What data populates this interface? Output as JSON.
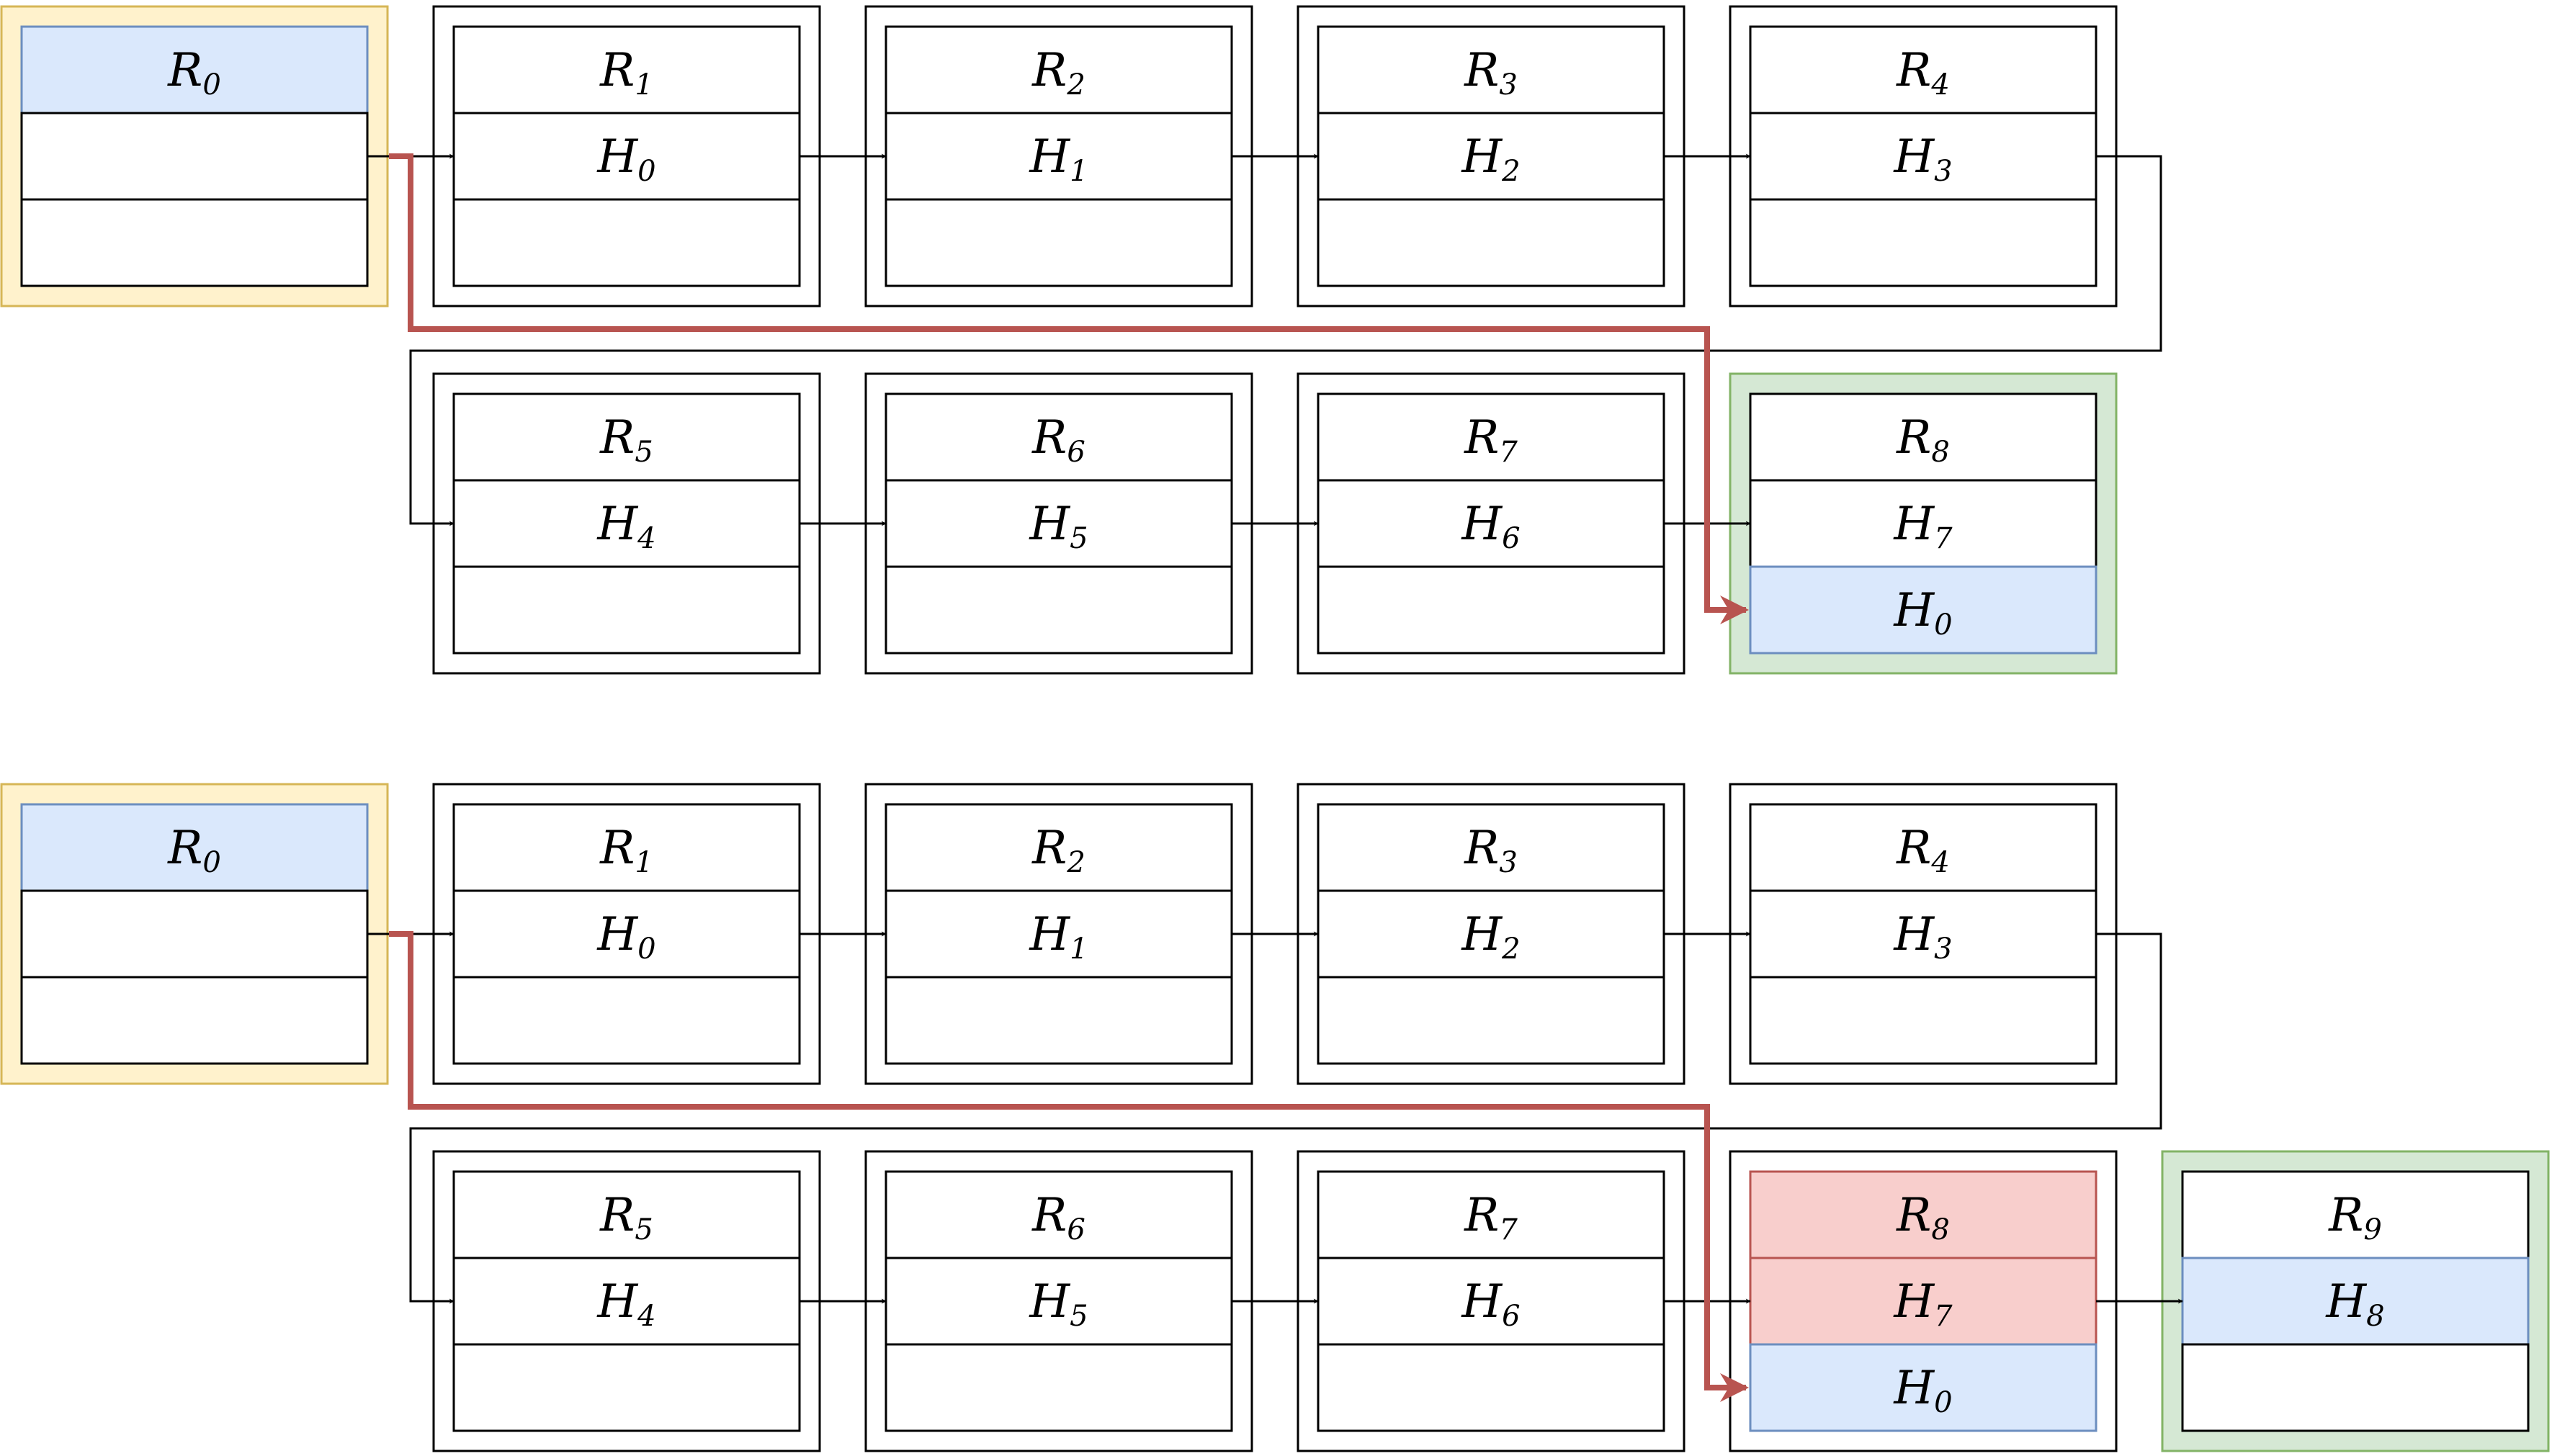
{
  "colors": {
    "stroke": "#000000",
    "initial_fill": "#fff2cc",
    "initial_stroke": "#d6b656",
    "final_fill": "#d5e8d4",
    "final_stroke": "#82b366",
    "highlight_fill": "#dae8fc",
    "highlight_stroke": "#6c8ebf",
    "removed_fill": "#f8cecc",
    "removed_stroke": "#b85450",
    "back_edge": "#b85450"
  },
  "diagrams": [
    {
      "blocks": [
        {
          "rows": [
            {
              "sym": "R",
              "sub": "0",
              "hl": "blue"
            },
            null,
            null
          ],
          "style": "initial"
        },
        {
          "rows": [
            {
              "sym": "R",
              "sub": "1"
            },
            {
              "sym": "H",
              "sub": "0"
            },
            null
          ],
          "style": "plain"
        },
        {
          "rows": [
            {
              "sym": "R",
              "sub": "2"
            },
            {
              "sym": "H",
              "sub": "1"
            },
            null
          ],
          "style": "plain"
        },
        {
          "rows": [
            {
              "sym": "R",
              "sub": "3"
            },
            {
              "sym": "H",
              "sub": "2"
            },
            null
          ],
          "style": "plain"
        },
        {
          "rows": [
            {
              "sym": "R",
              "sub": "4"
            },
            {
              "sym": "H",
              "sub": "3"
            },
            null
          ],
          "style": "plain"
        },
        {
          "rows": [
            {
              "sym": "R",
              "sub": "5"
            },
            {
              "sym": "H",
              "sub": "4"
            },
            null
          ],
          "style": "plain"
        },
        {
          "rows": [
            {
              "sym": "R",
              "sub": "6"
            },
            {
              "sym": "H",
              "sub": "5"
            },
            null
          ],
          "style": "plain"
        },
        {
          "rows": [
            {
              "sym": "R",
              "sub": "7"
            },
            {
              "sym": "H",
              "sub": "6"
            },
            null
          ],
          "style": "plain"
        },
        {
          "rows": [
            {
              "sym": "R",
              "sub": "8"
            },
            {
              "sym": "H",
              "sub": "7"
            },
            {
              "sym": "H",
              "sub": "0",
              "hl": "blue"
            }
          ],
          "style": "final"
        }
      ],
      "back_edge": {
        "from": 0,
        "to": 8
      }
    },
    {
      "blocks": [
        {
          "rows": [
            {
              "sym": "R",
              "sub": "0",
              "hl": "blue"
            },
            null,
            null
          ],
          "style": "initial"
        },
        {
          "rows": [
            {
              "sym": "R",
              "sub": "1"
            },
            {
              "sym": "H",
              "sub": "0"
            },
            null
          ],
          "style": "plain"
        },
        {
          "rows": [
            {
              "sym": "R",
              "sub": "2"
            },
            {
              "sym": "H",
              "sub": "1"
            },
            null
          ],
          "style": "plain"
        },
        {
          "rows": [
            {
              "sym": "R",
              "sub": "3"
            },
            {
              "sym": "H",
              "sub": "2"
            },
            null
          ],
          "style": "plain"
        },
        {
          "rows": [
            {
              "sym": "R",
              "sub": "4"
            },
            {
              "sym": "H",
              "sub": "3"
            },
            null
          ],
          "style": "plain"
        },
        {
          "rows": [
            {
              "sym": "R",
              "sub": "5"
            },
            {
              "sym": "H",
              "sub": "4"
            },
            null
          ],
          "style": "plain"
        },
        {
          "rows": [
            {
              "sym": "R",
              "sub": "6"
            },
            {
              "sym": "H",
              "sub": "5"
            },
            null
          ],
          "style": "plain"
        },
        {
          "rows": [
            {
              "sym": "R",
              "sub": "7"
            },
            {
              "sym": "H",
              "sub": "6"
            },
            null
          ],
          "style": "plain"
        },
        {
          "rows": [
            {
              "sym": "R",
              "sub": "8",
              "hl": "red"
            },
            {
              "sym": "H",
              "sub": "7",
              "hl": "red"
            },
            {
              "sym": "H",
              "sub": "0",
              "hl": "blue"
            }
          ],
          "style": "plain"
        },
        {
          "rows": [
            {
              "sym": "R",
              "sub": "9"
            },
            {
              "sym": "H",
              "sub": "8",
              "hl": "blue"
            },
            null
          ],
          "style": "final"
        }
      ],
      "back_edge": {
        "from": 0,
        "to": 8
      }
    }
  ]
}
